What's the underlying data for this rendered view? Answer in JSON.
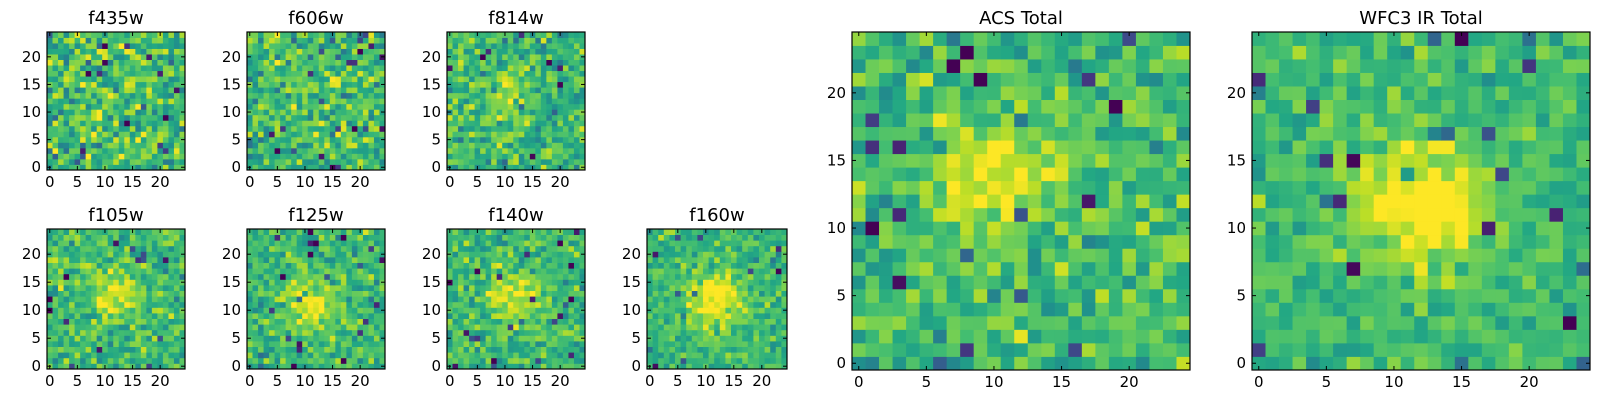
{
  "chart_data": {
    "type": "heatmap",
    "colormap": "viridis",
    "grid": false,
    "panels": [
      {
        "title": "f435w",
        "xticks": [
          "0",
          "5",
          "10",
          "15",
          "20"
        ],
        "yticks": [
          "0",
          "5",
          "10",
          "15",
          "20"
        ],
        "xlim": [
          0,
          25
        ],
        "ylim": [
          0,
          25
        ],
        "peak": [
          11,
          12
        ],
        "peak_strength": 0.05,
        "noise": 0.55,
        "seed": 11
      },
      {
        "title": "f606w",
        "xticks": [
          "0",
          "5",
          "10",
          "15",
          "20"
        ],
        "yticks": [
          "0",
          "5",
          "10",
          "15",
          "20"
        ],
        "xlim": [
          0,
          25
        ],
        "ylim": [
          0,
          25
        ],
        "peak": [
          11,
          13
        ],
        "peak_strength": 0.1,
        "noise": 0.5,
        "seed": 23
      },
      {
        "title": "f814w",
        "xticks": [
          "0",
          "5",
          "10",
          "15",
          "20"
        ],
        "yticks": [
          "0",
          "5",
          "10",
          "15",
          "20"
        ],
        "xlim": [
          0,
          25
        ],
        "ylim": [
          0,
          25
        ],
        "peak": [
          10,
          14
        ],
        "peak_strength": 0.18,
        "noise": 0.45,
        "seed": 37
      },
      {
        "title": "f105w",
        "xticks": [
          "0",
          "5",
          "10",
          "15",
          "20"
        ],
        "yticks": [
          "0",
          "5",
          "10",
          "15",
          "20"
        ],
        "xlim": [
          0,
          25
        ],
        "ylim": [
          0,
          25
        ],
        "peak": [
          12,
          13
        ],
        "peak_strength": 0.25,
        "noise": 0.38,
        "seed": 41
      },
      {
        "title": "f125w",
        "xticks": [
          "0",
          "5",
          "10",
          "15",
          "20"
        ],
        "yticks": [
          "0",
          "5",
          "10",
          "15",
          "20"
        ],
        "xlim": [
          0,
          25
        ],
        "ylim": [
          0,
          25
        ],
        "peak": [
          11,
          11
        ],
        "peak_strength": 0.28,
        "noise": 0.36,
        "seed": 53
      },
      {
        "title": "f140w",
        "xticks": [
          "0",
          "5",
          "10",
          "15",
          "20"
        ],
        "yticks": [
          "0",
          "5",
          "10",
          "15",
          "20"
        ],
        "xlim": [
          0,
          25
        ],
        "ylim": [
          0,
          25
        ],
        "peak": [
          12,
          12
        ],
        "peak_strength": 0.28,
        "noise": 0.36,
        "seed": 67
      },
      {
        "title": "f160w",
        "xticks": [
          "0",
          "5",
          "10",
          "15",
          "20"
        ],
        "yticks": [
          "0",
          "5",
          "10",
          "15",
          "20"
        ],
        "xlim": [
          0,
          25
        ],
        "ylim": [
          0,
          25
        ],
        "peak": [
          12,
          12
        ],
        "peak_strength": 0.38,
        "noise": 0.3,
        "seed": 79
      },
      {
        "title": "ACS Total",
        "xticks": [
          "0",
          "5",
          "10",
          "15",
          "20"
        ],
        "yticks": [
          "0",
          "5",
          "10",
          "15",
          "20"
        ],
        "xlim": [
          0,
          25
        ],
        "ylim": [
          0,
          25
        ],
        "peak": [
          10,
          14
        ],
        "peak_strength": 0.3,
        "noise": 0.38,
        "seed": 97
      },
      {
        "title": "WFC3 IR Total",
        "xticks": [
          "0",
          "5",
          "10",
          "15",
          "20"
        ],
        "yticks": [
          "0",
          "5",
          "10",
          "15",
          "20"
        ],
        "xlim": [
          0,
          25
        ],
        "ylim": [
          0,
          25
        ],
        "peak": [
          12,
          12
        ],
        "peak_strength": 0.42,
        "noise": 0.28,
        "seed": 113
      }
    ]
  }
}
